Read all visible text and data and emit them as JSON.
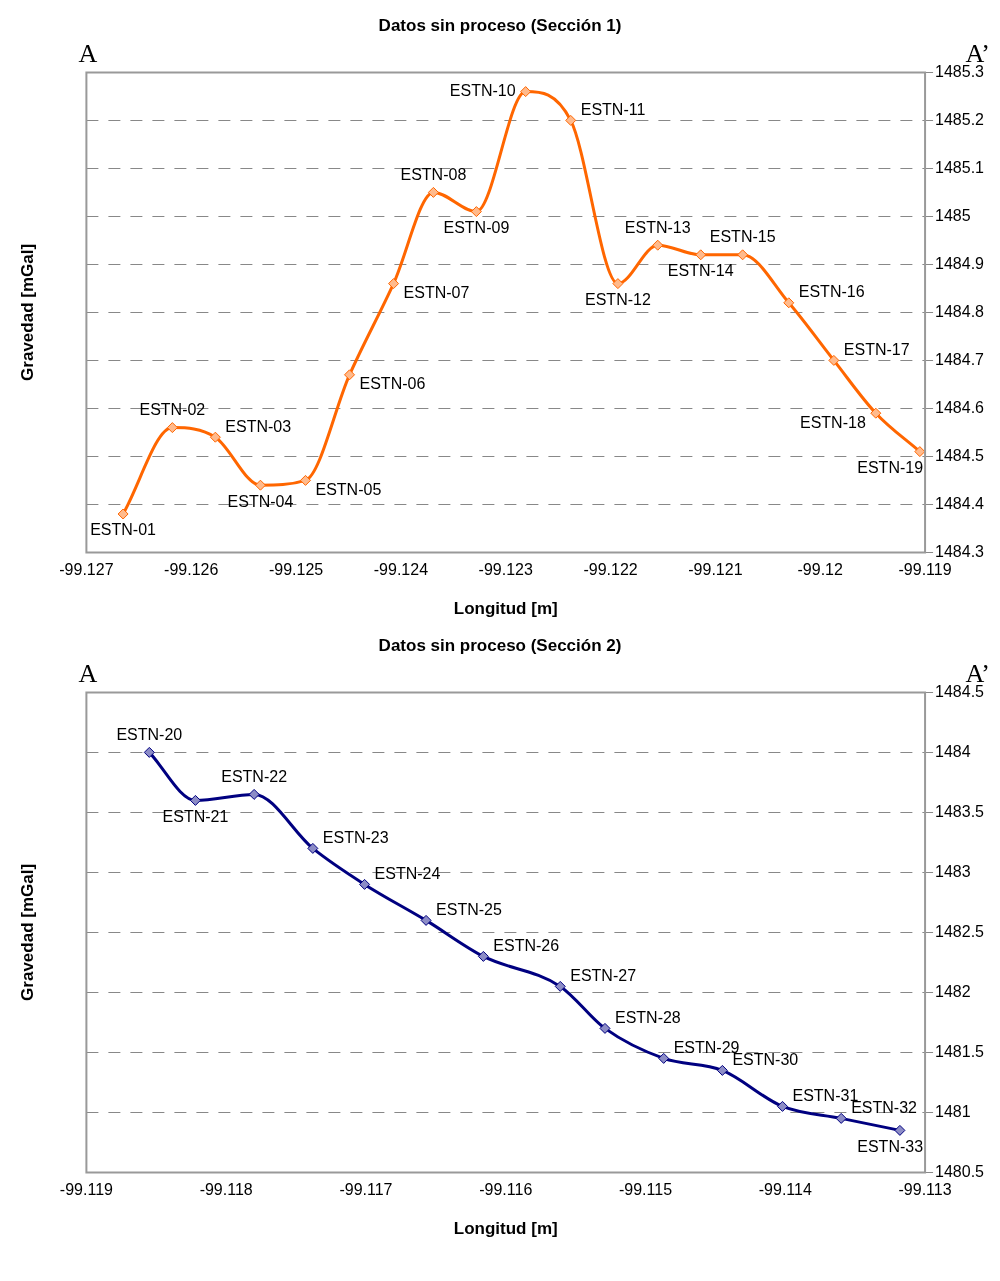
{
  "chart_data": [
    {
      "type": "line",
      "title": "Datos sin proceso (Sección 1)",
      "xlabel": "Longitud [m]",
      "ylabel": "Gravedad [mGal]",
      "marker": "diamond",
      "grid": "y",
      "legend": false,
      "line_style": "solid",
      "x": [
        -99.12665,
        -99.12618,
        -99.12577,
        -99.12534,
        -99.12491,
        -99.12449,
        -99.12407,
        -99.12369,
        -99.12328,
        -99.12281,
        -99.12238,
        -99.12193,
        -99.12155,
        -99.12114,
        -99.12074,
        -99.1203,
        -99.11987,
        -99.11947,
        -99.11905
      ],
      "series": [
        {
          "color": "#ff6600",
          "values": [
            1484.38,
            1484.56,
            1484.54,
            1484.44,
            1484.45,
            1484.67,
            1484.86,
            1485.05,
            1485.01,
            1485.26,
            1485.2,
            1484.86,
            1484.94,
            1484.92,
            1484.92,
            1484.82,
            1484.7,
            1484.59,
            1484.51
          ]
        }
      ],
      "xlim": [
        -99.127,
        -99.119
      ],
      "xticks": [
        -99.127,
        -99.126,
        -99.125,
        -99.124,
        -99.123,
        -99.122,
        -99.121,
        -99.12,
        -99.119
      ],
      "ylim": [
        1484.3,
        1485.3
      ],
      "yticks": [
        1484.3,
        1484.4,
        1484.5,
        1484.6,
        1484.7,
        1484.8,
        1484.9,
        1485,
        1485.1,
        1485.2,
        1485.3
      ],
      "annotations": [
        "A",
        "A’",
        {
          "text": "ESTN-01",
          "x": -99.12665,
          "y": 1484.38
        },
        {
          "text": "ESTN-02",
          "x": -99.12618,
          "y": 1484.56
        },
        {
          "text": "ESTN-03",
          "x": -99.12577,
          "y": 1484.54
        },
        {
          "text": "ESTN-04",
          "x": -99.12534,
          "y": 1484.44
        },
        {
          "text": "ESTN-05",
          "x": -99.12491,
          "y": 1484.45
        },
        {
          "text": "ESTN-06",
          "x": -99.12449,
          "y": 1484.67
        },
        {
          "text": "ESTN-07",
          "x": -99.12407,
          "y": 1484.86
        },
        {
          "text": "ESTN-08",
          "x": -99.12369,
          "y": 1485.05
        },
        {
          "text": "ESTN-09",
          "x": -99.12328,
          "y": 1485.01
        },
        {
          "text": "ESTN-10",
          "x": -99.12281,
          "y": 1485.26
        },
        {
          "text": "ESTN-11",
          "x": -99.12238,
          "y": 1485.2
        },
        {
          "text": "ESTN-12",
          "x": -99.12193,
          "y": 1484.86
        },
        {
          "text": "ESTN-13",
          "x": -99.12155,
          "y": 1484.94
        },
        {
          "text": "ESTN-14",
          "x": -99.12114,
          "y": 1484.92
        },
        {
          "text": "ESTN-15",
          "x": -99.12074,
          "y": 1484.92
        },
        {
          "text": "ESTN-16",
          "x": -99.1203,
          "y": 1484.82
        },
        {
          "text": "ESTN-17",
          "x": -99.11987,
          "y": 1484.7
        },
        {
          "text": "ESTN-18",
          "x": -99.11947,
          "y": 1484.59
        },
        {
          "text": "ESTN-19",
          "x": -99.11905,
          "y": 1484.51
        }
      ]
    },
    {
      "type": "line",
      "title": "Datos sin proceso (Sección 2)",
      "xlabel": "Longitud [m]",
      "ylabel": "Gravedad [mGal]",
      "marker": "diamond",
      "grid": "y",
      "legend": false,
      "line_style": "solid",
      "x": [
        -99.11855,
        -99.11822,
        -99.1178,
        -99.11738,
        -99.11701,
        -99.11657,
        -99.11616,
        -99.11561,
        -99.11529,
        -99.11487,
        -99.11445,
        -99.11402,
        -99.1136,
        -99.11318
      ],
      "series": [
        {
          "color": "#000080",
          "values": [
            1484,
            1483.6,
            1483.65,
            1483.2,
            1482.9,
            1482.6,
            1482.3,
            1482.05,
            1481.7,
            1481.45,
            1481.35,
            1481.05,
            1480.95,
            1480.85
          ]
        }
      ],
      "xlim": [
        -99.119,
        -99.113
      ],
      "xticks": [
        -99.119,
        -99.118,
        -99.117,
        -99.116,
        -99.115,
        -99.114,
        -99.113
      ],
      "ylim": [
        1480.5,
        1484.5
      ],
      "yticks": [
        1480.5,
        1481,
        1481.5,
        1482,
        1482.5,
        1483,
        1483.5,
        1484,
        1484.5
      ],
      "annotations": [
        "A",
        "A’",
        {
          "text": "ESTN-20",
          "x": -99.11855,
          "y": 1484
        },
        {
          "text": "ESTN-21",
          "x": -99.11822,
          "y": 1483.6
        },
        {
          "text": "ESTN-22",
          "x": -99.1178,
          "y": 1483.65
        },
        {
          "text": "ESTN-23",
          "x": -99.11738,
          "y": 1483.2
        },
        {
          "text": "ESTN-24",
          "x": -99.11701,
          "y": 1482.9
        },
        {
          "text": "ESTN-25",
          "x": -99.11657,
          "y": 1482.6
        },
        {
          "text": "ESTN-26",
          "x": -99.11616,
          "y": 1482.3
        },
        {
          "text": "ESTN-27",
          "x": -99.11561,
          "y": 1482.05
        },
        {
          "text": "ESTN-28",
          "x": -99.11529,
          "y": 1481.7
        },
        {
          "text": "ESTN-29",
          "x": -99.11487,
          "y": 1481.45
        },
        {
          "text": "ESTN-30",
          "x": -99.11445,
          "y": 1481.35
        },
        {
          "text": "ESTN-31",
          "x": -99.11402,
          "y": 1481.05
        },
        {
          "text": "ESTN-32",
          "x": -99.1136,
          "y": 1480.95
        },
        {
          "text": "ESTN-33",
          "x": -99.11318,
          "y": 1480.85
        }
      ]
    }
  ]
}
